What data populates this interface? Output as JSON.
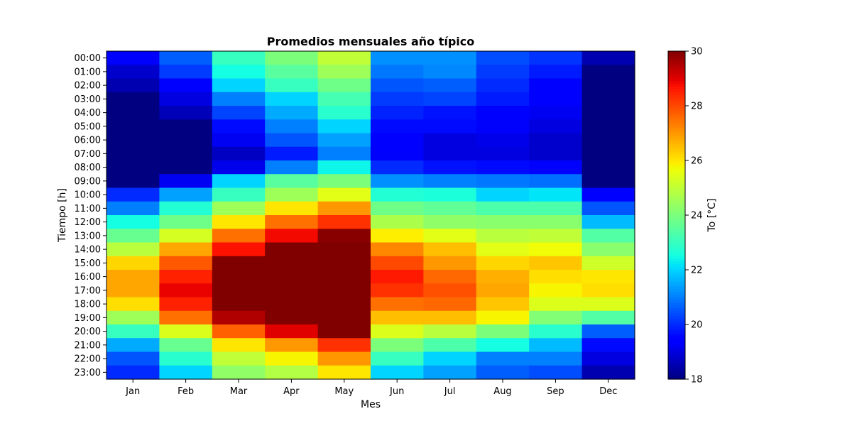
{
  "chart_data": {
    "type": "heatmap",
    "title": "Promedios mensuales año típico",
    "xlabel": "Mes",
    "ylabel": "Tiempo [h]",
    "x_categories": [
      "Jan",
      "Feb",
      "Mar",
      "Apr",
      "May",
      "Jun",
      "Jul",
      "Aug",
      "Sep",
      "Dec"
    ],
    "y_categories": [
      "00:00",
      "01:00",
      "02:00",
      "03:00",
      "04:00",
      "05:00",
      "06:00",
      "07:00",
      "08:00",
      "09:00",
      "10:00",
      "11:00",
      "12:00",
      "13:00",
      "14:00",
      "15:00",
      "16:00",
      "17:00",
      "18:00",
      "19:00",
      "20:00",
      "21:00",
      "22:00",
      "23:00"
    ],
    "values": [
      [
        19.3,
        20.6,
        23.0,
        24.0,
        25.0,
        21.2,
        21.2,
        20.4,
        20.1,
        18.5
      ],
      [
        18.8,
        20.2,
        22.5,
        23.5,
        24.5,
        20.9,
        21.1,
        20.2,
        19.8,
        18.0
      ],
      [
        18.5,
        19.5,
        22.0,
        23.0,
        23.8,
        20.5,
        20.6,
        20.0,
        19.5,
        18.0
      ],
      [
        18.0,
        19.0,
        21.0,
        22.0,
        23.2,
        20.2,
        20.3,
        19.8,
        19.4,
        18.0
      ],
      [
        18.0,
        18.6,
        20.3,
        21.5,
        22.8,
        19.9,
        19.7,
        19.5,
        19.2,
        18.0
      ],
      [
        18.0,
        18.0,
        19.6,
        21.0,
        22.0,
        19.6,
        19.6,
        19.3,
        19.0,
        18.0
      ],
      [
        18.0,
        18.0,
        19.2,
        20.5,
        21.4,
        19.4,
        19.0,
        19.1,
        18.8,
        18.0
      ],
      [
        18.0,
        18.0,
        18.7,
        19.8,
        21.0,
        19.3,
        19.0,
        19.0,
        18.8,
        18.0
      ],
      [
        18.0,
        18.0,
        19.1,
        21.0,
        22.4,
        20.0,
        19.7,
        19.6,
        19.5,
        18.0
      ],
      [
        18.0,
        19.2,
        22.0,
        23.5,
        24.0,
        21.2,
        21.0,
        20.9,
        20.8,
        18.0
      ],
      [
        20.0,
        21.4,
        23.0,
        24.5,
        25.5,
        22.7,
        22.6,
        22.0,
        22.2,
        19.4
      ],
      [
        21.0,
        22.7,
        24.5,
        26.0,
        27.0,
        23.8,
        23.6,
        23.3,
        23.3,
        20.5
      ],
      [
        22.5,
        23.8,
        26.0,
        27.5,
        28.3,
        24.7,
        24.3,
        24.2,
        24.2,
        21.7
      ],
      [
        23.7,
        25.3,
        27.5,
        28.8,
        29.9,
        25.9,
        25.5,
        24.9,
        25.0,
        23.4
      ],
      [
        24.9,
        26.8,
        28.7,
        30.0,
        30.0,
        27.2,
        26.5,
        25.5,
        25.7,
        24.2
      ],
      [
        26.2,
        27.8,
        30.0,
        30.0,
        30.0,
        28.0,
        27.0,
        26.2,
        26.4,
        25.2
      ],
      [
        26.8,
        28.5,
        30.0,
        30.0,
        30.0,
        28.6,
        27.6,
        26.7,
        26.1,
        26.0
      ],
      [
        26.8,
        28.9,
        30.0,
        30.0,
        30.0,
        28.3,
        27.9,
        26.8,
        25.8,
        26.1
      ],
      [
        26.1,
        28.5,
        30.0,
        30.0,
        30.0,
        27.5,
        27.6,
        26.4,
        25.4,
        25.4
      ],
      [
        24.5,
        27.5,
        29.5,
        30.0,
        30.0,
        26.5,
        26.5,
        25.8,
        24.1,
        23.4
      ],
      [
        23.0,
        25.4,
        27.7,
        29.0,
        30.0,
        25.4,
        24.9,
        24.0,
        22.8,
        20.6
      ],
      [
        21.5,
        23.7,
        26.0,
        27.0,
        28.3,
        24.0,
        23.3,
        22.5,
        21.7,
        19.6
      ],
      [
        20.5,
        22.8,
        25.0,
        25.8,
        27.0,
        23.0,
        22.0,
        21.0,
        21.0,
        19.0
      ],
      [
        20.0,
        22.0,
        24.3,
        24.8,
        26.0,
        22.0,
        21.4,
        20.6,
        20.4,
        18.5
      ]
    ],
    "colormap": "jet",
    "vmin": 18,
    "vmax": 30,
    "colorbar": {
      "label": "To [°C]",
      "ticks": [
        "18",
        "20",
        "22",
        "24",
        "26",
        "28",
        "30"
      ]
    }
  }
}
